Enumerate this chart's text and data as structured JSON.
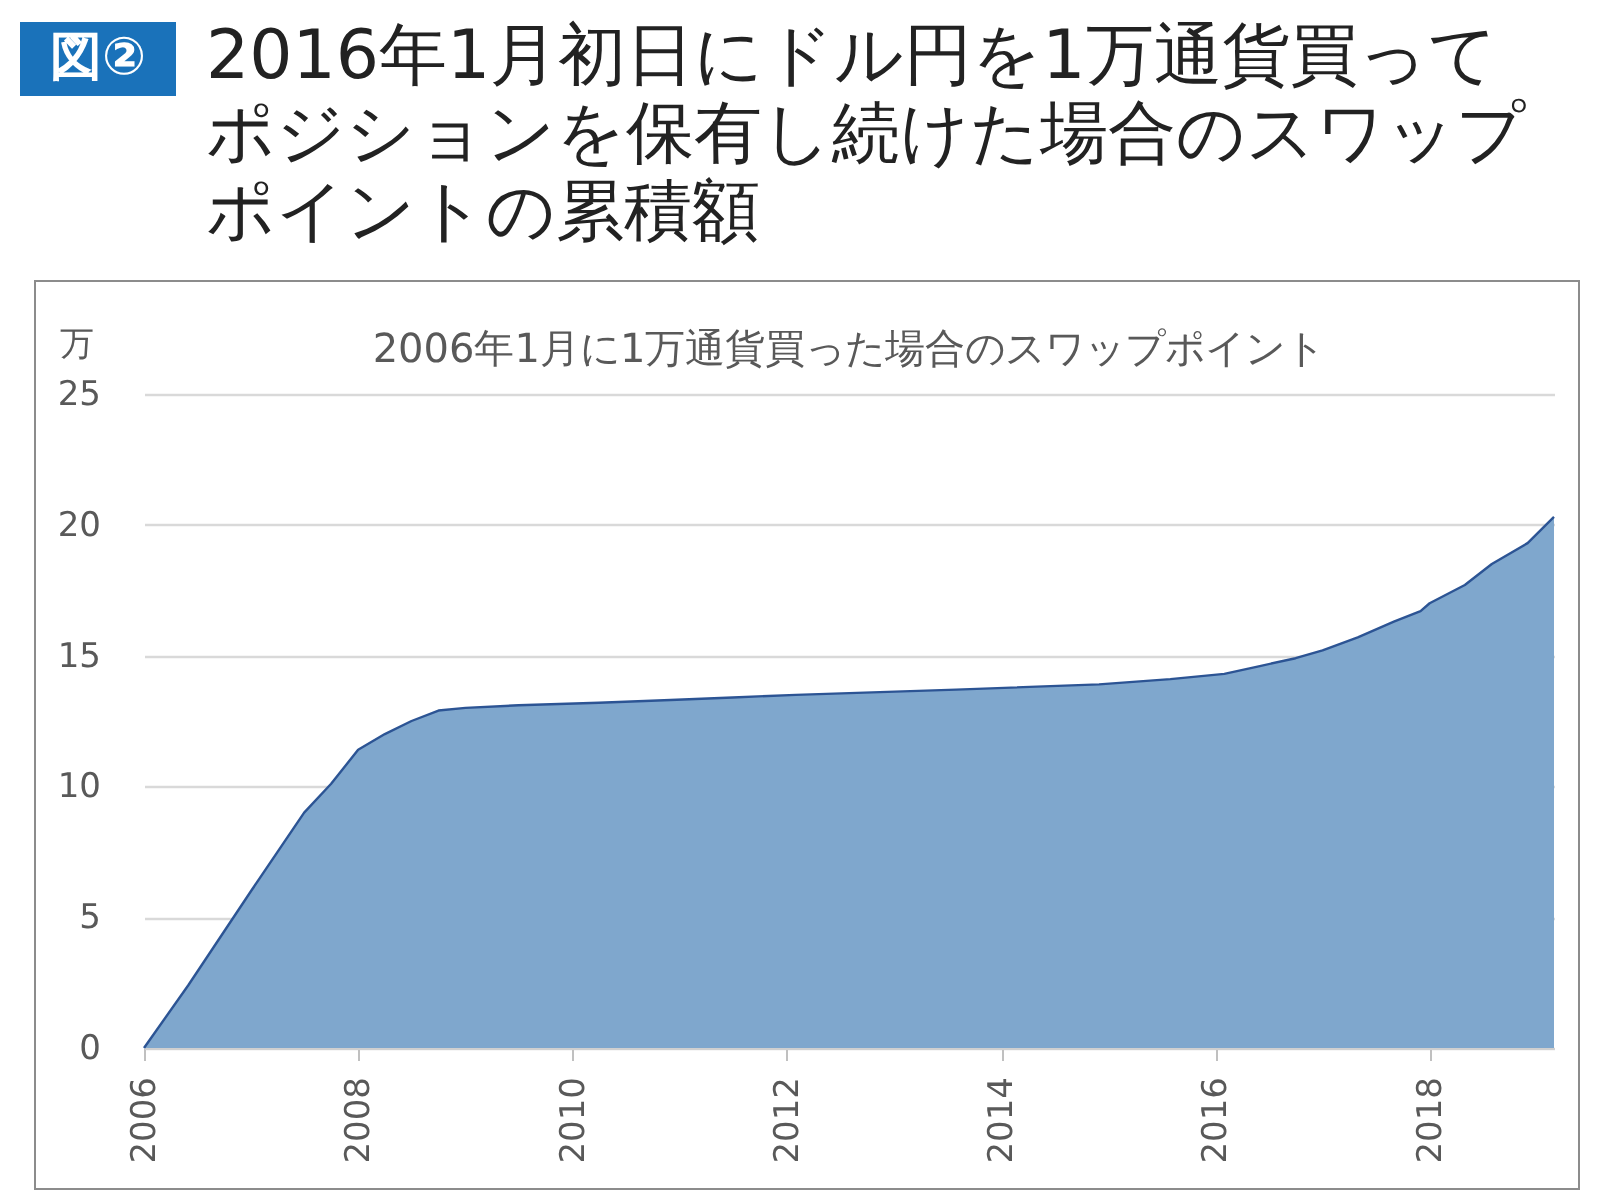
{
  "chart_data": {
    "type": "area",
    "title": "2016年1月初日にドル円を1万通貨買ってポジションを保有し続けた場合のスワップポイントの累積額",
    "subtitle": "2006年1月に1万通貨買った場合のスワップポイント",
    "ylabel": "万",
    "annotations": [
      "図②"
    ],
    "x": [
      "2006-01",
      "2006-06",
      "2007-01",
      "2007-07",
      "2007-10",
      "2008-01",
      "2008-04",
      "2008-07",
      "2008-10",
      "2009-01",
      "2009-07",
      "2010-04",
      "2010-12",
      "2011-07",
      "2012-02",
      "2013-08",
      "2014-12",
      "2015-08",
      "2016-02",
      "2016-06",
      "2016-10",
      "2017-01",
      "2017-05",
      "2017-09",
      "2017-12",
      "2018-01",
      "2018-05",
      "2018-08",
      "2018-12",
      "2019-03"
    ],
    "values": [
      0,
      2.4,
      6.0,
      9.0,
      10.1,
      11.4,
      12.0,
      12.5,
      12.9,
      13.0,
      13.1,
      13.2,
      13.3,
      13.4,
      13.5,
      13.7,
      13.9,
      14.1,
      14.3,
      14.6,
      14.9,
      15.2,
      15.7,
      16.3,
      16.7,
      17.0,
      17.7,
      18.5,
      19.3,
      20.3
    ],
    "color": "#7fa7cd",
    "xlim": [
      "2006-01",
      "2019-03"
    ],
    "xticks": [
      "2006",
      "2008",
      "2010",
      "2012",
      "2014",
      "2016",
      "2018"
    ],
    "ylim": [
      0,
      25
    ],
    "yticks": [
      0,
      5,
      10,
      15,
      20,
      25
    ],
    "grid": "y"
  }
}
